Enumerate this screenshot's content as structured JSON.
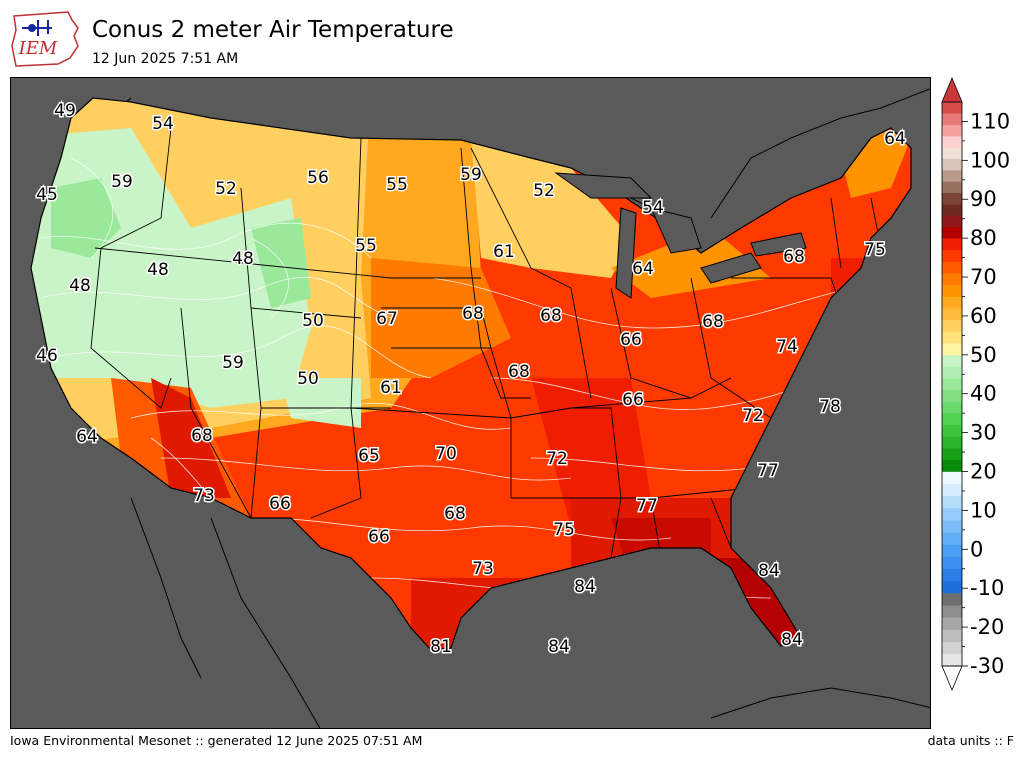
{
  "logo": {
    "text": "IEM"
  },
  "header": {
    "title": "Conus 2 meter Air Temperature",
    "subtitle": "12 Jun 2025 7:51 AM"
  },
  "footer": {
    "left": "Iowa Environmental Mesonet :: generated 12 June 2025 07:51 AM",
    "right": "data units :: F"
  },
  "colors": {
    "ocean": "#5a5a5a",
    "borders": "#000000",
    "contours": "#ffffff"
  },
  "colorbar": {
    "tick_labels": [
      "-30",
      "-20",
      "-10",
      "0",
      "10",
      "20",
      "30",
      "40",
      "50",
      "60",
      "70",
      "80",
      "90",
      "100",
      "110"
    ],
    "bands": [
      {
        "from": -30,
        "to": 20,
        "colors": [
          "#e6e6e6",
          "#d2d2d2",
          "#bdbdbd",
          "#a8a8a8",
          "#8e8e8e",
          "#6e6e6e",
          "#1e6ed8",
          "#2b7ee6",
          "#3b8fee",
          "#4b9ff2",
          "#62aef5",
          "#7abdf8",
          "#95cdfa",
          "#b5ddfc",
          "#d5edfe",
          "#eef9ff"
        ]
      },
      {
        "from": 20,
        "to": 50,
        "colors": [
          "#0a8a0a",
          "#1aa01a",
          "#2ab42a",
          "#3cc43c",
          "#52d052",
          "#6ad86a",
          "#82e082",
          "#9ae89a",
          "#b2eeb2",
          "#c8f4c8"
        ]
      },
      {
        "from": 50,
        "to": 80,
        "colors": [
          "#fff2a0",
          "#ffe37a",
          "#ffd060",
          "#ffbc3c",
          "#ffa820",
          "#ff9400",
          "#ff7a00",
          "#ff5a00",
          "#ff3a00",
          "#f01e00"
        ]
      },
      {
        "from": 80,
        "to": 115,
        "colors": [
          "#b40000",
          "#8e1a1a",
          "#6e2a22",
          "#7a4438",
          "#987060",
          "#b89a8a",
          "#d8c4b8",
          "#f0e0d8",
          "#ffd0d0",
          "#f4a0a0",
          "#e67878",
          "#d84c4c"
        ]
      }
    ]
  },
  "map": {
    "station_labels": [
      {
        "label": "49",
        "value": 49
      },
      {
        "label": "54",
        "value": 54
      },
      {
        "label": "45",
        "value": 45
      },
      {
        "label": "59",
        "value": 59
      },
      {
        "label": "52",
        "value": 52
      },
      {
        "label": "56",
        "value": 56
      },
      {
        "label": "55",
        "value": 55
      },
      {
        "label": "59",
        "value": 59
      },
      {
        "label": "52",
        "value": 52
      },
      {
        "label": "54",
        "value": 54
      },
      {
        "label": "64",
        "value": 64
      },
      {
        "label": "48",
        "value": 48
      },
      {
        "label": "48",
        "value": 48
      },
      {
        "label": "48",
        "value": 48
      },
      {
        "label": "55",
        "value": 55
      },
      {
        "label": "61",
        "value": 61
      },
      {
        "label": "64",
        "value": 64
      },
      {
        "label": "68",
        "value": 68
      },
      {
        "label": "75",
        "value": 75
      },
      {
        "label": "46",
        "value": 46
      },
      {
        "label": "50",
        "value": 50
      },
      {
        "label": "67",
        "value": 67
      },
      {
        "label": "68",
        "value": 68
      },
      {
        "label": "68",
        "value": 68
      },
      {
        "label": "66",
        "value": 66
      },
      {
        "label": "68",
        "value": 68
      },
      {
        "label": "74",
        "value": 74
      },
      {
        "label": "59",
        "value": 59
      },
      {
        "label": "50",
        "value": 50
      },
      {
        "label": "61",
        "value": 61
      },
      {
        "label": "68",
        "value": 68
      },
      {
        "label": "66",
        "value": 66
      },
      {
        "label": "72",
        "value": 72
      },
      {
        "label": "78",
        "value": 78
      },
      {
        "label": "64",
        "value": 64
      },
      {
        "label": "68",
        "value": 68
      },
      {
        "label": "65",
        "value": 65
      },
      {
        "label": "70",
        "value": 70
      },
      {
        "label": "72",
        "value": 72
      },
      {
        "label": "77",
        "value": 77
      },
      {
        "label": "73",
        "value": 73
      },
      {
        "label": "66",
        "value": 66
      },
      {
        "label": "68",
        "value": 68
      },
      {
        "label": "77",
        "value": 77
      },
      {
        "label": "66",
        "value": 66
      },
      {
        "label": "75",
        "value": 75
      },
      {
        "label": "73",
        "value": 73
      },
      {
        "label": "84",
        "value": 84
      },
      {
        "label": "84",
        "value": 84
      },
      {
        "label": "81",
        "value": 81
      },
      {
        "label": "84",
        "value": 84
      },
      {
        "label": "84",
        "value": 84
      }
    ]
  }
}
